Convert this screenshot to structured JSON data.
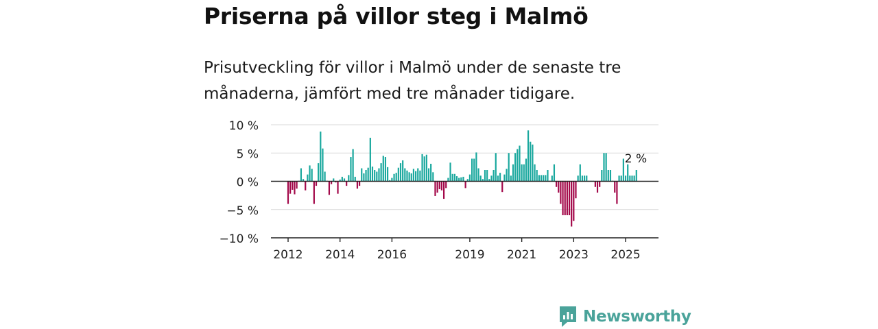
{
  "header": {
    "title": "Priserna på villor steg i Malmö",
    "subtitle": "Prisutveckling för villor i Malmö under de senaste tre månaderna, jämfört med tre månader tidigare."
  },
  "brand": {
    "name": "Newsworthy",
    "icon": "newsworthy-logo-icon",
    "color": "#4aa39a"
  },
  "colors": {
    "positive": "#1aa89e",
    "negative": "#a3094a",
    "grid": "#d9d9d9",
    "axis": "#222222"
  },
  "chart_data": {
    "type": "bar",
    "title": "Priserna på villor steg i Malmö",
    "xlabel": "",
    "ylabel": "",
    "ylim": [
      -10,
      10
    ],
    "y_ticks": [
      {
        "value": 10,
        "label": "10 %"
      },
      {
        "value": 5,
        "label": "5 %"
      },
      {
        "value": 0,
        "label": "0 %"
      },
      {
        "value": -5,
        "label": "−5 %"
      },
      {
        "value": -10,
        "label": "−10 %"
      }
    ],
    "x_ticks": [
      "2012",
      "2014",
      "2016",
      "2019",
      "2021",
      "2023",
      "2025"
    ],
    "start": "2012-01",
    "grid": true,
    "annotation": {
      "label": "2 %",
      "target": "last"
    },
    "values": [
      -4,
      -2.2,
      -1.5,
      -2.3,
      -1.3,
      0.1,
      2.3,
      0.4,
      -1.6,
      1.2,
      2.8,
      2.2,
      -4,
      -0.8,
      3.2,
      8.8,
      5.8,
      1.7,
      0.1,
      -2.4,
      -0.5,
      0.5,
      -0.2,
      -2.2,
      0.3,
      0.8,
      0.5,
      -0.8,
      1.1,
      4.3,
      5.7,
      0.8,
      -1.3,
      -0.8,
      2.3,
      1.4,
      2,
      2.4,
      7.7,
      2.6,
      2,
      1.7,
      2.3,
      3.2,
      4.5,
      4.3,
      2.5,
      0.2,
      0.6,
      1.3,
      1.5,
      2.4,
      3.2,
      3.7,
      2.3,
      1.9,
      1.6,
      1.4,
      2.2,
      1.8,
      2.3,
      1.9,
      4.8,
      4.4,
      4.7,
      2.3,
      3.1,
      1.6,
      -2.6,
      -2,
      -1.4,
      -1.6,
      -3.1,
      -1.2,
      0.6,
      3.3,
      1.3,
      1.3,
      0.9,
      0.6,
      0.7,
      0.8,
      -1.2,
      0.4,
      1.2,
      4,
      4,
      5.1,
      2.3,
      1,
      0.4,
      2,
      2,
      0.4,
      1,
      2,
      5,
      1,
      1.5,
      -1.9,
      1.2,
      2.2,
      5,
      1,
      3,
      5,
      5.7,
      6.3,
      3,
      3,
      4,
      9,
      7,
      6.5,
      3,
      2,
      1.1,
      1.1,
      1.1,
      1.1,
      2,
      0.1,
      1,
      3,
      -1,
      -2,
      -4,
      -6,
      -6,
      -6,
      -6,
      -8,
      -7,
      -3,
      1,
      3,
      1,
      1,
      1,
      0.1,
      0.1,
      0.1,
      -1,
      -2,
      -1,
      2,
      5,
      5,
      2,
      2,
      0.1,
      -2,
      -4,
      1,
      1,
      4,
      1,
      3,
      1,
      1,
      1,
      2
    ]
  }
}
